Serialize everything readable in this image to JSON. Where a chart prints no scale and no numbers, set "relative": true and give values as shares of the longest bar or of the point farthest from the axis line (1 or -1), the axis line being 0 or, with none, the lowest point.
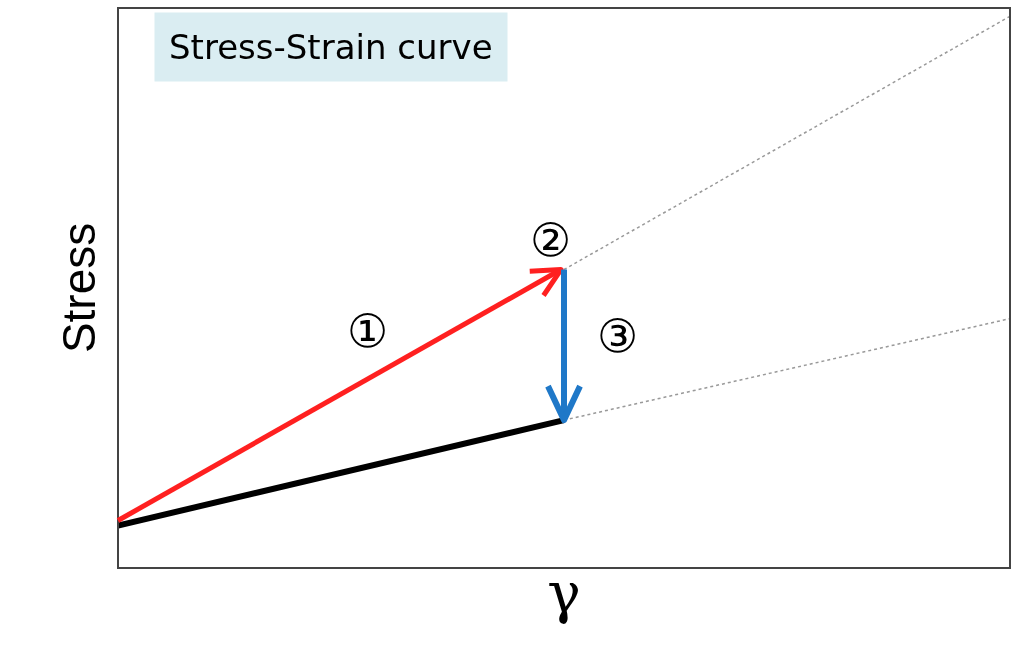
{
  "chart_data": {
    "type": "line",
    "relative": true,
    "xlabel": "γ",
    "ylabel": "Stress",
    "categories": [
      null,
      null,
      null
    ],
    "series": [
      {
        "color": "#000000",
        "values": [
          0.077,
          0.268,
          null
        ],
        "line_style": "solid"
      },
      {
        "color": "#999999",
        "values": [
          null,
          0.268,
          0.452
        ],
        "line_style": "dotted"
      },
      {
        "color": "#999999",
        "values": [
          null,
          0.541,
          1
        ],
        "line_style": "dotted"
      }
    ],
    "annotations": [
      "Stress-Strain curve",
      "①",
      "②",
      "③"
    ],
    "marker": "none"
  }
}
